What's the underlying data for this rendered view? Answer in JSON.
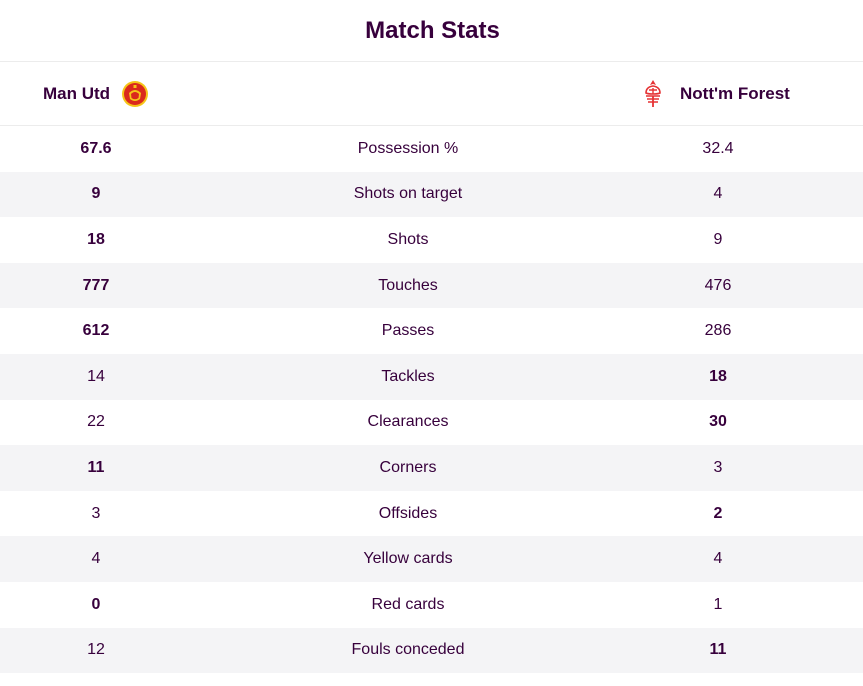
{
  "title": "Match Stats",
  "teams": {
    "home": {
      "name": "Man Utd",
      "crest_icon": "man-utd-crest-icon",
      "crest_color": "#da291c"
    },
    "away": {
      "name": "Nott'm Forest",
      "crest_icon": "nottm-forest-crest-icon",
      "crest_color": "#e53233"
    }
  },
  "colors": {
    "text": "#37003c",
    "row_alt_bg": "#f4f4f6"
  },
  "stats": [
    {
      "label": "Possession %",
      "home": "67.6",
      "away": "32.4",
      "leader": "home"
    },
    {
      "label": "Shots on target",
      "home": "9",
      "away": "4",
      "leader": "home"
    },
    {
      "label": "Shots",
      "home": "18",
      "away": "9",
      "leader": "home"
    },
    {
      "label": "Touches",
      "home": "777",
      "away": "476",
      "leader": "home"
    },
    {
      "label": "Passes",
      "home": "612",
      "away": "286",
      "leader": "home"
    },
    {
      "label": "Tackles",
      "home": "14",
      "away": "18",
      "leader": "away"
    },
    {
      "label": "Clearances",
      "home": "22",
      "away": "30",
      "leader": "away"
    },
    {
      "label": "Corners",
      "home": "11",
      "away": "3",
      "leader": "home"
    },
    {
      "label": "Offsides",
      "home": "3",
      "away": "2",
      "leader": "away"
    },
    {
      "label": "Yellow cards",
      "home": "4",
      "away": "4",
      "leader": "none"
    },
    {
      "label": "Red cards",
      "home": "0",
      "away": "1",
      "leader": "home"
    },
    {
      "label": "Fouls conceded",
      "home": "12",
      "away": "11",
      "leader": "away"
    }
  ]
}
